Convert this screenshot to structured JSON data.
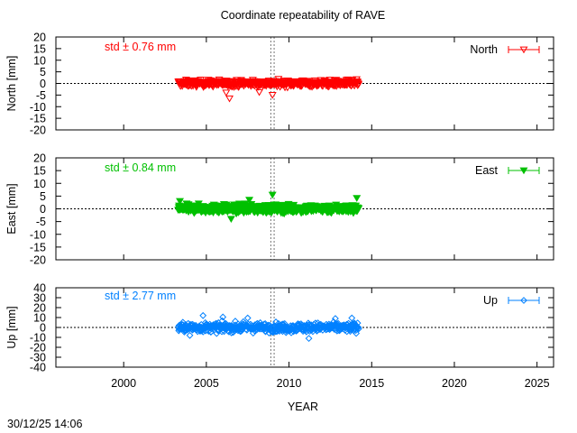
{
  "chart_data": {
    "type": "scatter",
    "title": "Coordinate repeatability of RAVE",
    "xlabel": "YEAR",
    "xlim": [
      1995.9,
      2026.0
    ],
    "x_ticks": [
      "2000",
      "2005",
      "2010",
      "2015",
      "2020",
      "2025"
    ],
    "x_tick_values": [
      2000,
      2005,
      2010,
      2015,
      2020,
      2025
    ],
    "data_range": [
      2003.3,
      2014.2
    ],
    "break_lines_x": [
      2008.9,
      2009.1
    ],
    "timestamp": "30/12/25 14:06",
    "panels": [
      {
        "id": "north",
        "ylabel": "North [mm]",
        "ylim": [
          -20,
          20
        ],
        "y_ticks": [
          "20",
          "15",
          "10",
          "5",
          "0",
          "-5",
          "-10",
          "-15",
          "-20"
        ],
        "y_tick_values": [
          20,
          15,
          10,
          5,
          0,
          -5,
          -10,
          -15,
          -20
        ],
        "std_label": "std ± 0.76 mm",
        "series_name": "North",
        "color": "#ff0000",
        "marker": "triangle-down-open",
        "spread": 1.3,
        "outliers": [
          [
            2006.4,
            -6.5
          ],
          [
            2009.0,
            -5.0
          ],
          [
            2006.2,
            -4.0
          ],
          [
            2008.2,
            -3.8
          ]
        ]
      },
      {
        "id": "east",
        "ylabel": "East [mm]",
        "ylim": [
          -20,
          20
        ],
        "y_ticks": [
          "20",
          "15",
          "10",
          "5",
          "0",
          "-5",
          "-10",
          "-15",
          "-20"
        ],
        "y_tick_values": [
          20,
          15,
          10,
          5,
          0,
          -5,
          -10,
          -15,
          -20
        ],
        "std_label": "std ± 0.84 mm",
        "series_name": "East",
        "color": "#00c000",
        "marker": "triangle-down-filled",
        "spread": 1.5,
        "outliers": [
          [
            2009.0,
            5.5
          ],
          [
            2014.1,
            4.2
          ],
          [
            2003.4,
            3.0
          ],
          [
            2007.6,
            3.5
          ],
          [
            2006.5,
            -4.0
          ]
        ]
      },
      {
        "id": "up",
        "ylabel": "Up [mm]",
        "ylim": [
          -40,
          40
        ],
        "y_ticks": [
          "40",
          "30",
          "20",
          "10",
          "0",
          "-10",
          "-20",
          "-30",
          "-40"
        ],
        "y_tick_values": [
          40,
          30,
          20,
          10,
          0,
          -10,
          -20,
          -30,
          -40
        ],
        "std_label": "std ± 2.77 mm",
        "series_name": "Up",
        "color": "#0080ff",
        "marker": "diamond-open",
        "spread": 4.2,
        "outliers": [
          [
            2004.8,
            12.0
          ],
          [
            2006.0,
            10.5
          ],
          [
            2007.5,
            9.5
          ],
          [
            2011.2,
            -11.0
          ],
          [
            2012.8,
            9.0
          ],
          [
            2013.8,
            9.5
          ],
          [
            2004.0,
            -8.0
          ]
        ]
      }
    ]
  }
}
